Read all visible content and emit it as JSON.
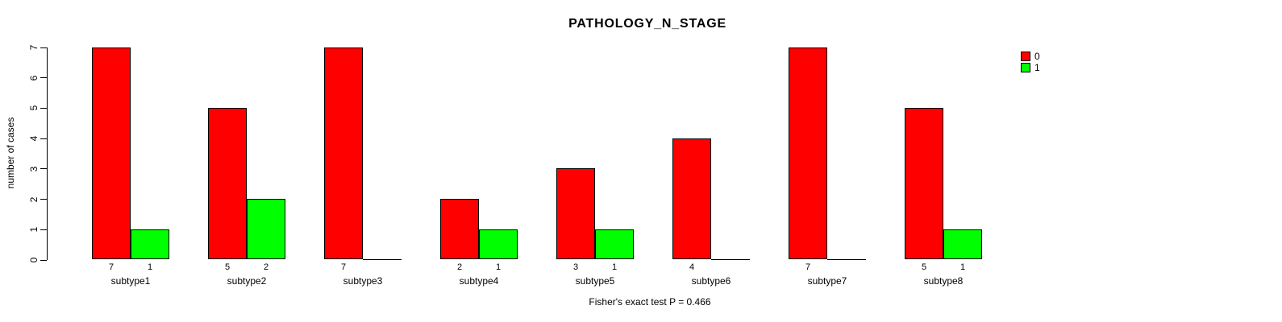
{
  "title": "PATHOLOGY_N_STAGE",
  "ylabel": "number of cases",
  "footer": "Fisher's exact test P = 0.466",
  "colors": {
    "series_0": "#FF0000",
    "series_1": "#00FF00",
    "axis": "#000000",
    "background": "#FFFFFF"
  },
  "legend": {
    "position": "top-right",
    "items": [
      {
        "label": "0",
        "color": "#FF0000"
      },
      {
        "label": "1",
        "color": "#00FF00"
      }
    ]
  },
  "chart_data": {
    "type": "bar",
    "title": "PATHOLOGY_N_STAGE",
    "categories": [
      "subtype1",
      "subtype2",
      "subtype3",
      "subtype4",
      "subtype5",
      "subtype6",
      "subtype7",
      "subtype8"
    ],
    "series": [
      {
        "name": "0",
        "color": "#FF0000",
        "values": [
          7,
          5,
          7,
          2,
          3,
          4,
          7,
          5
        ]
      },
      {
        "name": "1",
        "color": "#00FF00",
        "values": [
          1,
          2,
          0,
          1,
          1,
          0,
          0,
          1
        ]
      }
    ],
    "xlabel": "",
    "ylabel": "number of cases",
    "ylim": [
      0,
      7
    ],
    "yticks": [
      0,
      1,
      2,
      3,
      4,
      5,
      6,
      7
    ],
    "grid": false,
    "legend_position": "top-right",
    "bar_value_labels_shown_when_nonzero": true,
    "annotation": "Fisher's exact test P = 0.466"
  }
}
